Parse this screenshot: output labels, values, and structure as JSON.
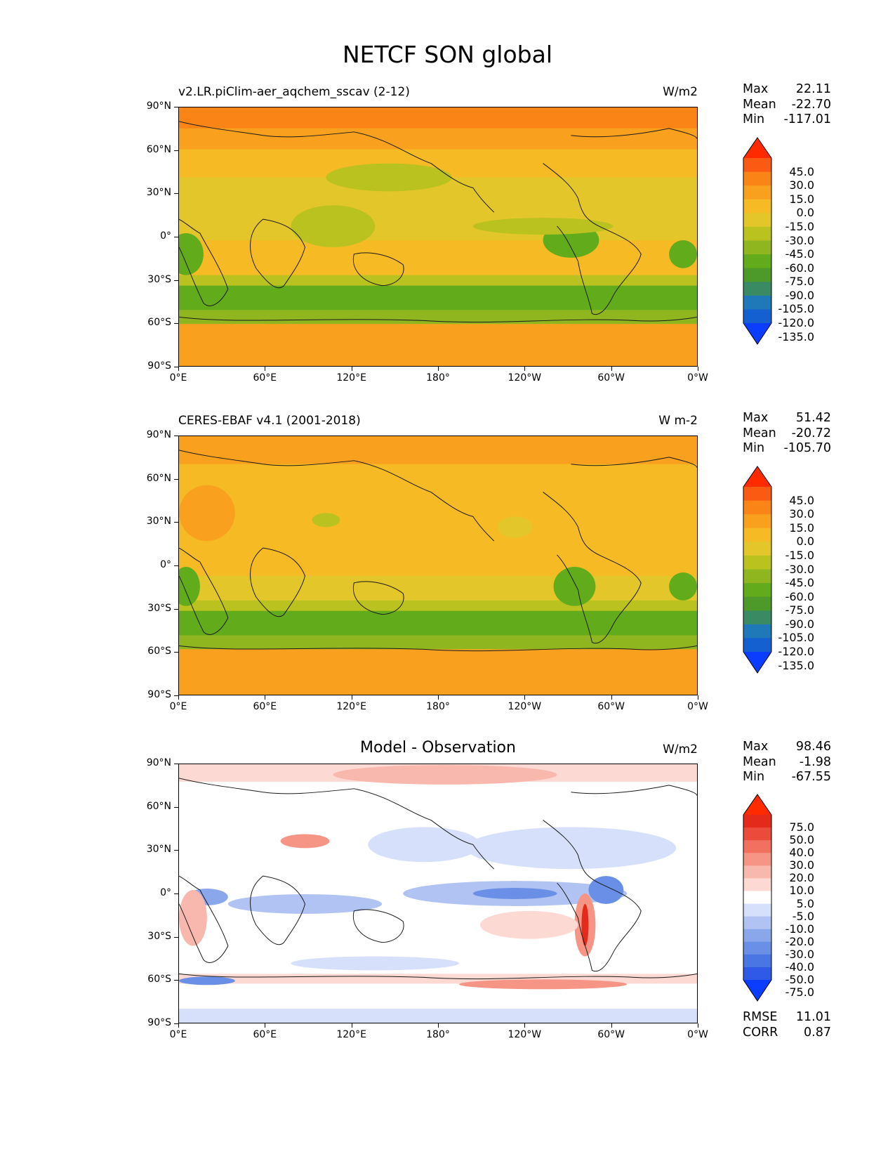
{
  "figure_title": "NETCF SON global",
  "y_ticks": [
    "90°N",
    "60°N",
    "30°N",
    "0°",
    "30°S",
    "60°S",
    "90°S"
  ],
  "x_ticks": [
    "0°E",
    "60°E",
    "120°E",
    "180°",
    "120°W",
    "60°W",
    "0°W"
  ],
  "panels": [
    {
      "id": "model",
      "left_title": "v2.LR.piClim-aer_aqchem_sscav (2-12)",
      "units": "W/m2",
      "stats": {
        "max_label": "Max",
        "max": "22.11",
        "mean_label": "Mean",
        "mean": "-22.70",
        "min_label": "Min",
        "min": "-117.01"
      },
      "colorbar_labels": [
        "45.0",
        "30.0",
        "15.0",
        "0.0",
        "-15.0",
        "-30.0",
        "-45.0",
        "-60.0",
        "-75.0",
        "-90.0",
        "-105.0",
        "-120.0",
        "-135.0"
      ]
    },
    {
      "id": "obs",
      "left_title": "CERES-EBAF v4.1 (2001-2018)",
      "units": "W m-2",
      "stats": {
        "max_label": "Max",
        "max": "51.42",
        "mean_label": "Mean",
        "mean": "-20.72",
        "min_label": "Min",
        "min": "-105.70"
      },
      "colorbar_labels": [
        "45.0",
        "30.0",
        "15.0",
        "0.0",
        "-15.0",
        "-30.0",
        "-45.0",
        "-60.0",
        "-75.0",
        "-90.0",
        "-105.0",
        "-120.0",
        "-135.0"
      ]
    },
    {
      "id": "diff",
      "center_title": "Model - Observation",
      "units": "W/m2",
      "stats": {
        "max_label": "Max",
        "max": "98.46",
        "mean_label": "Mean",
        "mean": "-1.98",
        "min_label": "Min",
        "min": "-67.55"
      },
      "colorbar_labels": [
        "75.0",
        "50.0",
        "40.0",
        "30.0",
        "20.0",
        "10.0",
        "5.0",
        "-5.0",
        "-10.0",
        "-20.0",
        "-30.0",
        "-40.0",
        "-50.0",
        "-75.0"
      ],
      "rmse_label": "RMSE",
      "rmse": "11.01",
      "corr_label": "CORR",
      "corr": "0.87"
    }
  ],
  "colors": {
    "abs_scale": [
      "#0b3dff",
      "#1460d0",
      "#1f79b8",
      "#3a8a63",
      "#4d9a2a",
      "#62ab1b",
      "#8fb51f",
      "#b9c21f",
      "#e3c62a",
      "#f6bb24",
      "#f9a01f",
      "#fb8417",
      "#fb5a13",
      "#ff2a00"
    ],
    "diff_scale": [
      "#0b3dff",
      "#2f5ae8",
      "#4a76e4",
      "#6a8fe6",
      "#8ba7ec",
      "#b0c3f3",
      "#d6e0fa",
      "#ffffff",
      "#fcd9d3",
      "#f9b8ad",
      "#f69485",
      "#f27060",
      "#ec4a3a",
      "#e42a1a",
      "#ff2a00"
    ]
  }
}
